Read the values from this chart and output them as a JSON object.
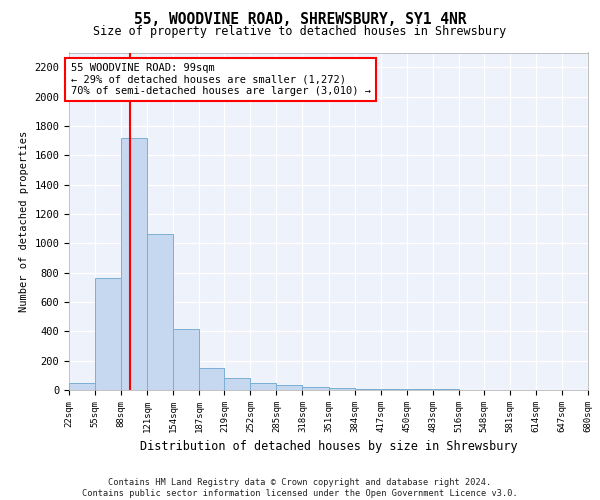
{
  "title": "55, WOODVINE ROAD, SHREWSBURY, SY1 4NR",
  "subtitle": "Size of property relative to detached houses in Shrewsbury",
  "xlabel": "Distribution of detached houses by size in Shrewsbury",
  "ylabel": "Number of detached properties",
  "bar_color": "#c5d8f0",
  "bar_edgecolor": "#7aafd4",
  "background_color": "#eef2fb",
  "annotation_text": "55 WOODVINE ROAD: 99sqm\n← 29% of detached houses are smaller (1,272)\n70% of semi-detached houses are larger (3,010) →",
  "vline_x": 99,
  "bin_edges": [
    22,
    55,
    88,
    121,
    154,
    187,
    219,
    252,
    285,
    318,
    351,
    384,
    417,
    450,
    483,
    516,
    548,
    581,
    614,
    647,
    680
  ],
  "bar_heights": [
    50,
    760,
    1720,
    1060,
    415,
    150,
    80,
    45,
    35,
    20,
    15,
    10,
    8,
    5,
    4,
    3,
    2,
    2,
    1,
    1
  ],
  "yticks": [
    0,
    200,
    400,
    600,
    800,
    1000,
    1200,
    1400,
    1600,
    1800,
    2000,
    2200
  ],
  "ylim": [
    0,
    2300
  ],
  "footer": "Contains HM Land Registry data © Crown copyright and database right 2024.\nContains public sector information licensed under the Open Government Licence v3.0.",
  "tick_labels": [
    "22sqm",
    "55sqm",
    "88sqm",
    "121sqm",
    "154sqm",
    "187sqm",
    "219sqm",
    "252sqm",
    "285sqm",
    "318sqm",
    "351sqm",
    "384sqm",
    "417sqm",
    "450sqm",
    "483sqm",
    "516sqm",
    "548sqm",
    "581sqm",
    "614sqm",
    "647sqm",
    "680sqm"
  ]
}
